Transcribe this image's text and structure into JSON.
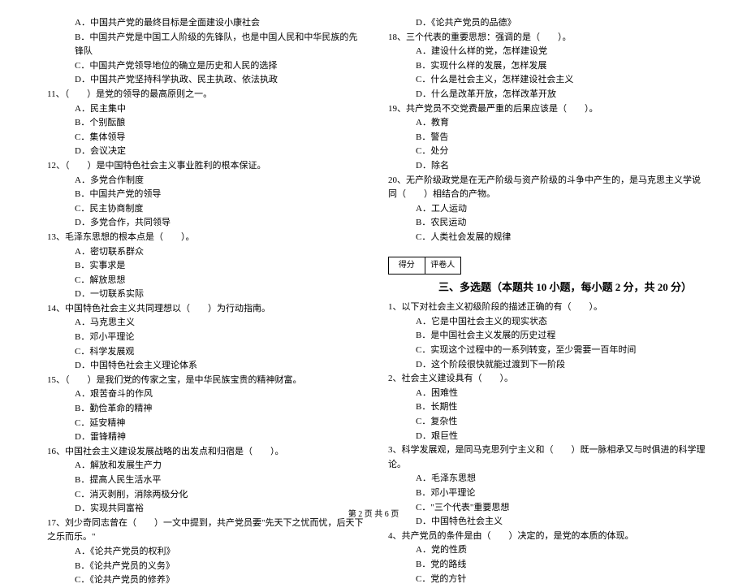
{
  "leftColumn": {
    "q10opts": [
      "A．中国共产党的最终目标是全面建设小康社会",
      "B．中国共产党是中国工人阶级的先锋队，也是中国人民和中华民族的先锋队",
      "C．中国共产党领导地位的确立是历史和人民的选择",
      "D．中国共产党坚持科学执政、民主执政、依法执政"
    ],
    "q11": "11、（　　）是党的领导的最高原则之一。",
    "q11opts": [
      "A．民主集中",
      "B．个别酝酿",
      "C．集体领导",
      "D．会议决定"
    ],
    "q12": "12、（　　）是中国特色社会主义事业胜利的根本保证。",
    "q12opts": [
      "A．多党合作制度",
      "B．中国共产党的领导",
      "C．民主协商制度",
      "D．多党合作，共同领导"
    ],
    "q13": "13、毛泽东思想的根本点是（　　）。",
    "q13opts": [
      "A．密切联系群众",
      "B．实事求是",
      "C．解放思想",
      "D．一切联系实际"
    ],
    "q14": "14、中国特色社会主义共同理想以（　　）为行动指南。",
    "q14opts": [
      "A．马克思主义",
      "B．邓小平理论",
      "C．科学发展观",
      "D．中国特色社会主义理论体系"
    ],
    "q15": "15、（　　）是我们党的传家之宝，是中华民族宝贵的精神财富。",
    "q15opts": [
      "A．艰苦奋斗的作风",
      "B．勤俭革命的精神",
      "C．延安精神",
      "D．雷锋精神"
    ],
    "q16": "16、中国社会主义建设发展战略的出发点和归宿是（　　）。",
    "q16opts": [
      "A．解放和发展生产力",
      "B．提高人民生活水平",
      "C．消灭剥削，消除两极分化",
      "D．实现共同富裕"
    ],
    "q17": "17、刘少奇同志曾在（　　）一文中提到，共产党员要\"先天下之忧而忧，后天下之乐而乐。\"",
    "q17opts": [
      "A．《论共产党员的权利》",
      "B．《论共产党员的义务》",
      "C．《论共产党员的修养》"
    ]
  },
  "rightColumn": {
    "q17d": "D．《论共产党员的品德》",
    "q18": "18、三个代表的重要思想：强调的是（　　）。",
    "q18opts": [
      "A．建设什么样的党，怎样建设党",
      "B．实现什么样的发展，怎样发展",
      "C．什么是社会主义，怎样建设社会主义",
      "D．什么是改革开放，怎样改革开放"
    ],
    "q19": "19、共产党员不交党费最严重的后果应该是（　　）。",
    "q19opts": [
      "A．教育",
      "B．警告",
      "C．处分",
      "D．除名"
    ],
    "q20": "20、无产阶级政党是在无产阶级与资产阶级的斗争中产生的，是马克思主义学说同（　　）相结合的产物。",
    "q20opts": [
      "A．工人运动",
      "B．农民运动",
      "C．人类社会发展的规律"
    ],
    "scoreLabels": {
      "a": "得分",
      "b": "评卷人"
    },
    "sectionTitle": "三、多选题（本题共 10 小题，每小题 2 分，共 20 分）",
    "mq1": "1、以下对社会主义初级阶段的描述正确的有（　　）。",
    "mq1opts": [
      "A．它是中国社会主义的现实状态",
      "B．是中国社会主义发展的历史过程",
      "C．实现这个过程中的一系列转变，至少需要一百年时间",
      "D．这个阶段很快就能过渡到下一阶段"
    ],
    "mq2": "2、社会主义建设具有（　　）。",
    "mq2opts": [
      "A．困难性",
      "B．长期性",
      "C．复杂性",
      "D．艰巨性"
    ],
    "mq3": "3、科学发展观，是同马克思列宁主义和（　　）既一脉相承又与时俱进的科学理论。",
    "mq3opts": [
      "A．毛泽东思想",
      "B．邓小平理论",
      "C．\"三个代表\"重要思想",
      "D．中国特色社会主义"
    ],
    "mq4": "4、共产党员的条件是由（　　）决定的，是党的本质的体现。",
    "mq4opts": [
      "A．党的性质",
      "B．党的路线",
      "C．党的方针"
    ]
  },
  "footer": "第 2 页 共 6 页"
}
